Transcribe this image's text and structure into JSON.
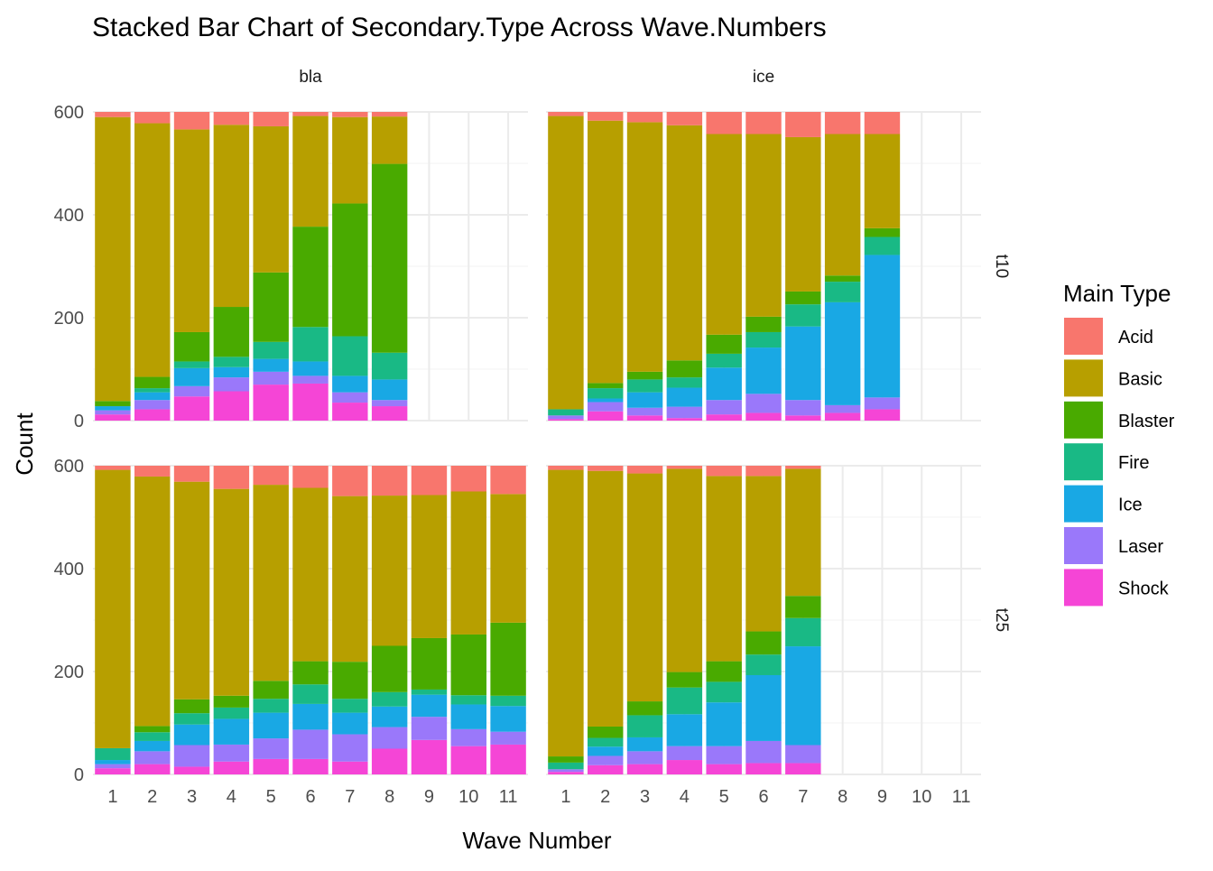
{
  "chart_data": {
    "type": "bar",
    "stacked": true,
    "title": "Stacked Bar Chart of Secondary.Type Across Wave.Numbers",
    "xlabel": "Wave Number",
    "ylabel": "Count",
    "x": [
      "1",
      "2",
      "3",
      "4",
      "5",
      "6",
      "7",
      "8",
      "9",
      "10",
      "11"
    ],
    "ylim": [
      0,
      600
    ],
    "yticks": [
      0,
      200,
      400,
      600
    ],
    "grid": true,
    "legend": {
      "title": "Main Type",
      "position": "right",
      "entries": [
        "Acid",
        "Basic",
        "Blaster",
        "Fire",
        "Ice",
        "Laser",
        "Shock"
      ]
    },
    "colors": {
      "Acid": "#F8766D",
      "Basic": "#B79F00",
      "Blaster": "#49AA00",
      "Fire": "#19B985",
      "Ice": "#19A8E4",
      "Laser": "#9A78FA",
      "Shock": "#F545D6"
    },
    "facet_columns": [
      "bla",
      "ice"
    ],
    "facet_rows": [
      "t10",
      "t25"
    ],
    "panels": [
      {
        "col": "bla",
        "row": "t10",
        "waves": [
          1,
          2,
          3,
          4,
          5,
          6,
          7,
          8
        ],
        "values": {
          "Shock": [
            12,
            22,
            47,
            57,
            70,
            72,
            35,
            28
          ],
          "Laser": [
            8,
            18,
            20,
            27,
            25,
            15,
            20,
            12
          ],
          "Ice": [
            8,
            15,
            35,
            20,
            25,
            28,
            32,
            40
          ],
          "Fire": [
            0,
            8,
            13,
            20,
            33,
            67,
            77,
            52
          ],
          "Blaster": [
            10,
            22,
            57,
            97,
            135,
            195,
            258,
            367
          ],
          "Basic": [
            552,
            493,
            394,
            354,
            284,
            215,
            168,
            92
          ],
          "Acid": [
            10,
            22,
            34,
            25,
            28,
            8,
            10,
            9
          ]
        }
      },
      {
        "col": "ice",
        "row": "t10",
        "waves": [
          1,
          2,
          3,
          4,
          5,
          6,
          7,
          8,
          9
        ],
        "values": {
          "Shock": [
            3,
            18,
            10,
            5,
            12,
            15,
            10,
            15,
            22
          ],
          "Laser": [
            7,
            18,
            15,
            22,
            28,
            37,
            30,
            15,
            23
          ],
          "Ice": [
            0,
            7,
            30,
            37,
            63,
            90,
            143,
            200,
            277
          ],
          "Fire": [
            12,
            20,
            25,
            20,
            27,
            30,
            43,
            40,
            35
          ],
          "Blaster": [
            0,
            10,
            15,
            33,
            37,
            30,
            25,
            12,
            17
          ],
          "Basic": [
            570,
            510,
            485,
            457,
            390,
            355,
            300,
            275,
            183
          ],
          "Acid": [
            8,
            17,
            20,
            26,
            43,
            43,
            49,
            43,
            43
          ]
        }
      },
      {
        "col": "bla",
        "row": "t25",
        "waves": [
          1,
          2,
          3,
          4,
          5,
          6,
          7,
          8,
          9,
          10,
          11
        ],
        "values": {
          "Shock": [
            12,
            20,
            15,
            25,
            30,
            30,
            25,
            50,
            67,
            55,
            58
          ],
          "Laser": [
            8,
            25,
            42,
            33,
            40,
            57,
            53,
            42,
            45,
            33,
            25
          ],
          "Ice": [
            8,
            20,
            40,
            50,
            50,
            50,
            42,
            40,
            43,
            48,
            50
          ],
          "Fire": [
            23,
            17,
            22,
            22,
            27,
            38,
            27,
            28,
            10,
            18,
            20
          ],
          "Blaster": [
            0,
            12,
            27,
            23,
            35,
            45,
            72,
            90,
            100,
            118,
            142
          ],
          "Basic": [
            541,
            485,
            423,
            402,
            381,
            337,
            322,
            292,
            278,
            278,
            250
          ],
          "Acid": [
            8,
            21,
            31,
            45,
            37,
            43,
            59,
            58,
            57,
            50,
            55
          ]
        }
      },
      {
        "col": "ice",
        "row": "t25",
        "waves": [
          1,
          2,
          3,
          4,
          5,
          6,
          7
        ],
        "values": {
          "Shock": [
            5,
            18,
            20,
            28,
            20,
            22,
            22
          ],
          "Laser": [
            5,
            18,
            25,
            27,
            35,
            43,
            35
          ],
          "Ice": [
            0,
            18,
            27,
            62,
            85,
            128,
            192
          ],
          "Fire": [
            13,
            17,
            43,
            52,
            40,
            40,
            55
          ],
          "Blaster": [
            12,
            22,
            27,
            30,
            40,
            45,
            43
          ],
          "Basic": [
            557,
            497,
            443,
            395,
            360,
            302,
            247
          ],
          "Acid": [
            8,
            10,
            15,
            6,
            20,
            20,
            6
          ]
        }
      }
    ]
  }
}
